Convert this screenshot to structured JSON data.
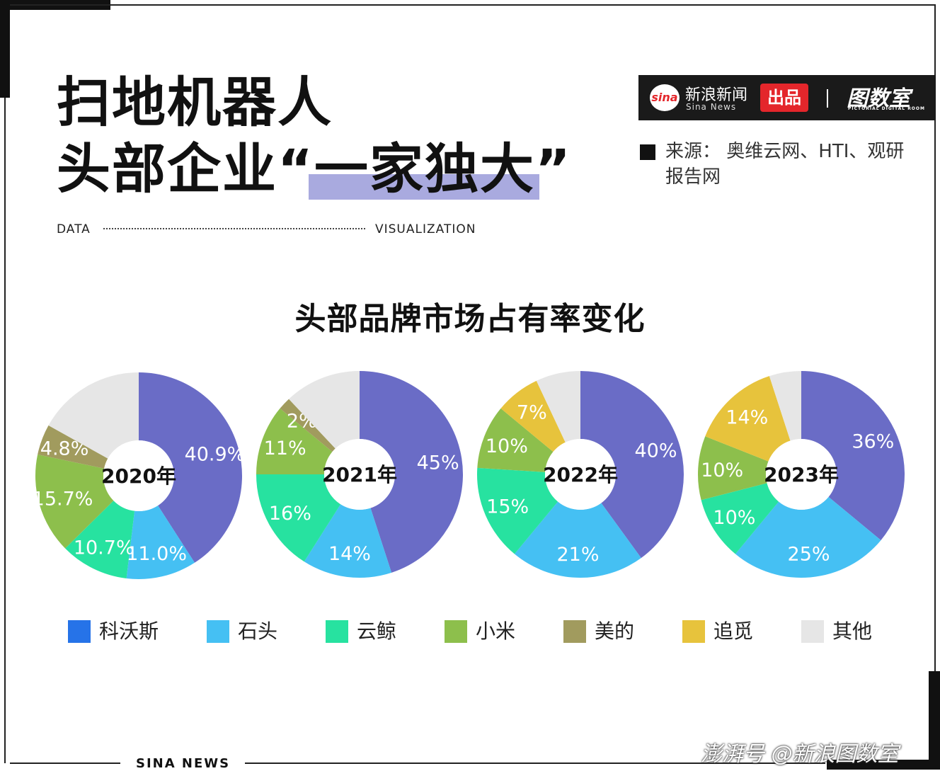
{
  "header": {
    "title_line1": "扫地机器人",
    "title_line2_pre": "头部企业“",
    "title_line2_hl": "一家独大",
    "title_line2_post": "”",
    "data_label": "DATA",
    "viz_label": "VISUALIZATION"
  },
  "brand": {
    "sina_logo": "sina",
    "sina_name": "新浪新闻",
    "sina_sub": "Sina News",
    "chupin": "出品",
    "tushu": "图数室",
    "tushu_sub": "PICTORIAL DIGITAL ROOM"
  },
  "source": "来源：  奥维云网、HTI、观研报告网",
  "footer": {
    "sina_news": "SINA  NEWS",
    "watermark": "澎湃号  @新浪图数室"
  },
  "colors": {
    "科沃斯": "#6a6cc6",
    "石头": "#45c0f3",
    "云鲸": "#27e2a0",
    "小米": "#8dbf4c",
    "美的": "#a19b5e",
    "追觅": "#e7c33c",
    "其他": "#e6e6e6",
    "legend_科沃斯": "#2673e8",
    "highlight": "#a9aadf"
  },
  "legend": [
    "科沃斯",
    "石头",
    "云鲸",
    "小米",
    "美的",
    "追觅",
    "其他"
  ],
  "chart_data": {
    "type": "pie",
    "title": "头部品牌市场占有率变化",
    "categories": [
      "科沃斯",
      "石头",
      "云鲸",
      "小米",
      "美的",
      "追觅",
      "其他"
    ],
    "series": [
      {
        "name": "2020年",
        "values": [
          40.9,
          11.0,
          10.7,
          15.7,
          4.8,
          0,
          16.9
        ],
        "labels": [
          "40.9%",
          "11.0%",
          "10.7%",
          "15.7%",
          "4.8%",
          "",
          ""
        ]
      },
      {
        "name": "2021年",
        "values": [
          45,
          14,
          16,
          11,
          2,
          0,
          12
        ],
        "labels": [
          "45%",
          "14%",
          "16%",
          "11%",
          "2%",
          "",
          ""
        ]
      },
      {
        "name": "2022年",
        "values": [
          40,
          21,
          15,
          10,
          0,
          7,
          7
        ],
        "labels": [
          "40%",
          "21%",
          "15%",
          "10%",
          "",
          "7%",
          ""
        ]
      },
      {
        "name": "2023年",
        "values": [
          36,
          25,
          10,
          10,
          0,
          14,
          5
        ],
        "labels": [
          "36%",
          "25%",
          "10%",
          "10%",
          "",
          "14%",
          ""
        ]
      }
    ]
  }
}
